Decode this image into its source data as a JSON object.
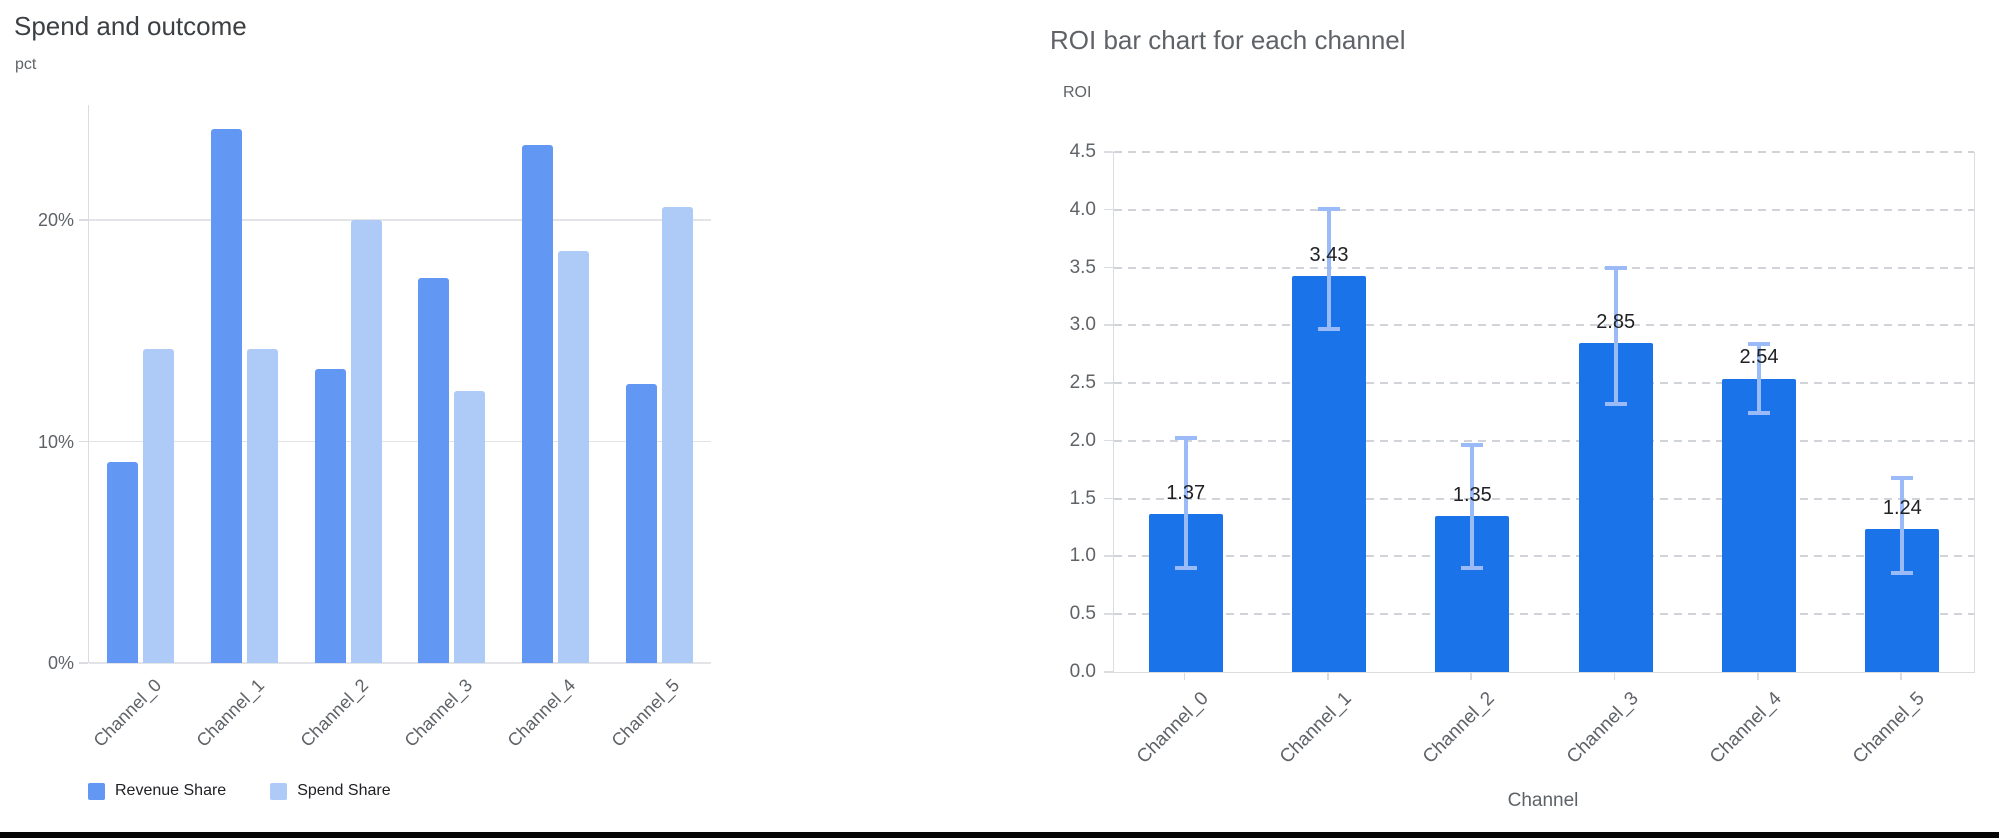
{
  "page": {
    "background": "#ffffff",
    "footer_bar_color": "#050505"
  },
  "chart_data": [
    {
      "type": "bar",
      "title": "Spend and outcome",
      "ylabel": "pct",
      "xlabel": "",
      "categories": [
        "Channel_0",
        "Channel_1",
        "Channel_2",
        "Channel_3",
        "Channel_4",
        "Channel_5"
      ],
      "series": [
        {
          "name": "Revenue Share",
          "color": "#6298f3",
          "values": [
            9.1,
            24.1,
            13.3,
            17.4,
            23.4,
            12.6
          ]
        },
        {
          "name": "Spend Share",
          "color": "#aecaf7",
          "values": [
            14.2,
            14.2,
            20.0,
            12.3,
            18.6,
            20.6
          ]
        }
      ],
      "y_ticks": [
        {
          "value": 0,
          "label": "0%"
        },
        {
          "value": 10,
          "label": "10%"
        },
        {
          "value": 20,
          "label": "20%"
        }
      ],
      "ylim": [
        0,
        25.2
      ],
      "grid": "horizontal-solid",
      "legend_position": "bottom-left",
      "units": "percent"
    },
    {
      "type": "bar",
      "title": "ROI bar chart for each channel",
      "ylabel": "ROI",
      "xlabel": "Channel",
      "categories": [
        "Channel_0",
        "Channel_1",
        "Channel_2",
        "Channel_3",
        "Channel_4",
        "Channel_5"
      ],
      "values": [
        1.37,
        3.43,
        1.35,
        2.85,
        2.54,
        1.24
      ],
      "bar_labels": [
        "1.37",
        "3.43",
        "1.35",
        "2.85",
        "2.54",
        "1.24"
      ],
      "error_bars": [
        {
          "low": 0.88,
          "high": 2.04
        },
        {
          "low": 2.95,
          "high": 4.02
        },
        {
          "low": 0.88,
          "high": 1.98
        },
        {
          "low": 2.3,
          "high": 3.51
        },
        {
          "low": 2.22,
          "high": 2.86
        },
        {
          "low": 0.84,
          "high": 1.7
        }
      ],
      "bar_color": "#1a73e8",
      "error_bar_color": "#9abbf8",
      "y_ticks": [
        {
          "value": 0.0,
          "label": "0.0"
        },
        {
          "value": 0.5,
          "label": "0.5"
        },
        {
          "value": 1.0,
          "label": "1.0"
        },
        {
          "value": 1.5,
          "label": "1.5"
        },
        {
          "value": 2.0,
          "label": "2.0"
        },
        {
          "value": 2.5,
          "label": "2.5"
        },
        {
          "value": 3.0,
          "label": "3.0"
        },
        {
          "value": 3.5,
          "label": "3.5"
        },
        {
          "value": 4.0,
          "label": "4.0"
        },
        {
          "value": 4.5,
          "label": "4.5"
        }
      ],
      "ylim": [
        0,
        4.5
      ],
      "grid": "horizontal-dashed",
      "legend_position": "none"
    }
  ]
}
